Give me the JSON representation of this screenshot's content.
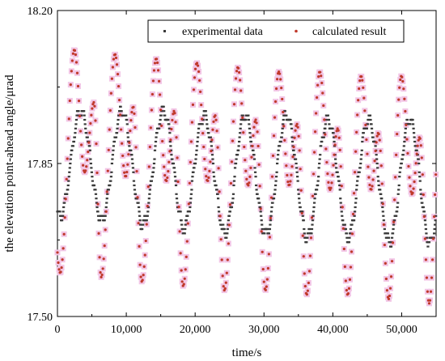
{
  "chart_data": {
    "type": "scatter",
    "title": "",
    "xlabel": "time/s",
    "ylabel": "the elevation point-ahead angle/μrad",
    "xlim": [
      0,
      55000
    ],
    "ylim": [
      17.5,
      18.2
    ],
    "x_ticks": [
      0,
      10000,
      20000,
      30000,
      40000,
      50000
    ],
    "x_tick_labels": [
      "0",
      "10,000",
      "20,000",
      "30,000",
      "40,000",
      "50,000"
    ],
    "y_ticks": [
      17.5,
      17.85,
      18.2
    ],
    "y_tick_labels": [
      "17.50",
      "17.85",
      "18.20"
    ],
    "legend_position": "top-right",
    "period_s": 5965,
    "series": [
      {
        "name": "experimental data",
        "color": "#3a3a3a",
        "marker": "square",
        "sample_interval_s": 60,
        "quantization_step": 0.01,
        "long_period_cycles": [
          {
            "t_start": 0,
            "t_max": 2400,
            "max": 17.97,
            "t_min": 400,
            "min": 17.73
          },
          {
            "t_start": 5965,
            "t_max": 8400,
            "max": 17.97,
            "t_min": 6400,
            "min": 17.72
          },
          {
            "t_start": 11930,
            "t_max": 14300,
            "max": 17.97,
            "t_min": 12400,
            "min": 17.71
          },
          {
            "t_start": 17895,
            "t_max": 20300,
            "max": 17.96,
            "t_min": 18300,
            "min": 17.7
          },
          {
            "t_start": 23860,
            "t_max": 26200,
            "max": 17.96,
            "t_min": 24300,
            "min": 17.69
          },
          {
            "t_start": 29825,
            "t_max": 32200,
            "max": 17.96,
            "t_min": 30300,
            "min": 17.69
          },
          {
            "t_start": 35790,
            "t_max": 38100,
            "max": 17.95,
            "t_min": 36300,
            "min": 17.68
          },
          {
            "t_start": 41755,
            "t_max": 44100,
            "max": 17.95,
            "t_min": 42200,
            "min": 17.68
          },
          {
            "t_start": 47720,
            "t_max": 50000,
            "max": 17.95,
            "t_min": 48200,
            "min": 17.67
          },
          {
            "t_start": 53685,
            "t_max": 55000,
            "max": 17.94,
            "t_min": 54100,
            "min": 17.67
          }
        ]
      },
      {
        "name": "calculated result",
        "color": "#c0392b",
        "shadow_color": "#f2c6e6",
        "marker": "circle",
        "sample_interval_s": 120,
        "peaks": [
          {
            "x": 2450,
            "y": 18.11
          },
          {
            "x": 5300,
            "y": 17.99
          },
          {
            "x": 8350,
            "y": 18.1
          },
          {
            "x": 11000,
            "y": 17.98
          },
          {
            "x": 14350,
            "y": 18.09
          },
          {
            "x": 16950,
            "y": 17.97
          },
          {
            "x": 20250,
            "y": 18.08
          },
          {
            "x": 22900,
            "y": 17.96
          },
          {
            "x": 26200,
            "y": 18.07
          },
          {
            "x": 28800,
            "y": 17.95
          },
          {
            "x": 32150,
            "y": 18.06
          },
          {
            "x": 34800,
            "y": 17.94
          },
          {
            "x": 38100,
            "y": 18.06
          },
          {
            "x": 40700,
            "y": 17.93
          },
          {
            "x": 44100,
            "y": 18.05
          },
          {
            "x": 46600,
            "y": 17.92
          },
          {
            "x": 49950,
            "y": 18.05
          },
          {
            "x": 52600,
            "y": 17.91
          }
        ],
        "troughs": [
          {
            "x": 400,
            "y": 17.6
          },
          {
            "x": 3950,
            "y": 17.83
          },
          {
            "x": 6350,
            "y": 17.59
          },
          {
            "x": 9900,
            "y": 17.82
          },
          {
            "x": 12250,
            "y": 17.58
          },
          {
            "x": 15800,
            "y": 17.81
          },
          {
            "x": 18250,
            "y": 17.57
          },
          {
            "x": 21800,
            "y": 17.81
          },
          {
            "x": 24250,
            "y": 17.56
          },
          {
            "x": 27700,
            "y": 17.8
          },
          {
            "x": 30200,
            "y": 17.56
          },
          {
            "x": 33650,
            "y": 17.8
          },
          {
            "x": 36200,
            "y": 17.55
          },
          {
            "x": 39600,
            "y": 17.79
          },
          {
            "x": 42150,
            "y": 17.55
          },
          {
            "x": 45550,
            "y": 17.79
          },
          {
            "x": 48100,
            "y": 17.54
          },
          {
            "x": 51500,
            "y": 17.78
          },
          {
            "x": 54000,
            "y": 17.53
          }
        ]
      }
    ]
  }
}
